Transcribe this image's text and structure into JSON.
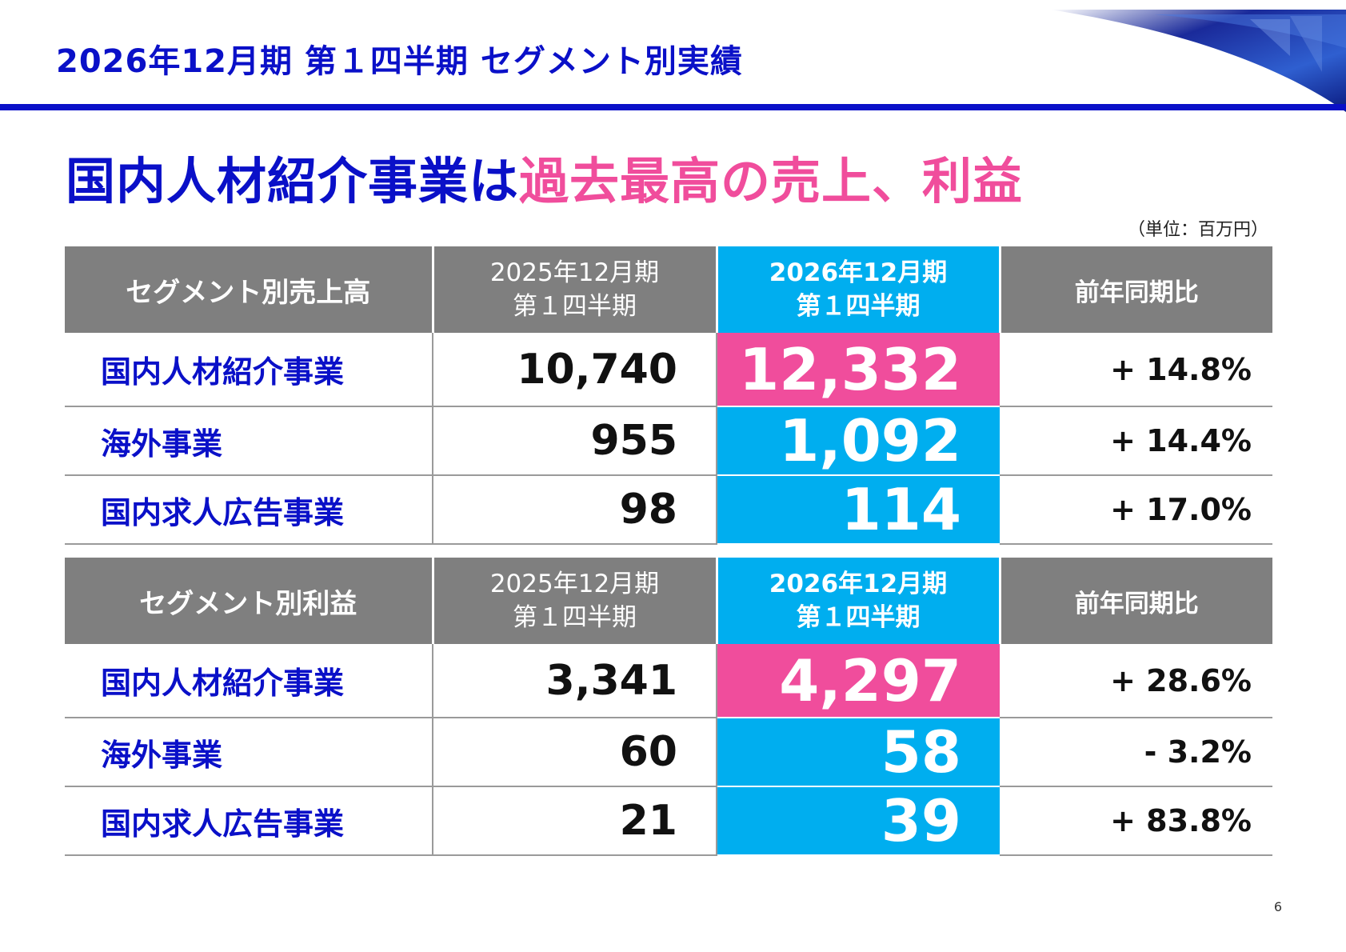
{
  "page": {
    "title": "2026年12月期 第１四半期 セグメント別実績",
    "headline_blue": "国内人材紹介事業は",
    "headline_pink": "過去最高の売上、利益",
    "unit_note": "（単位：百万円）",
    "page_number": "6"
  },
  "colors": {
    "title_blue": "#0a10c8",
    "accent_pink": "#f04d9c",
    "highlight_cyan": "#00aeef",
    "header_gray": "#7f7f7f"
  },
  "sales_table": {
    "header": {
      "label": "セグメント別売上高",
      "prev_period_line1": "2025年12月期",
      "prev_period_line2": "第１四半期",
      "curr_period_line1": "2026年12月期",
      "curr_period_line2": "第１四半期",
      "yoy": "前年同期比"
    },
    "rows": [
      {
        "segment": "国内人材紹介事業",
        "prev": "10,740",
        "curr": "12,332",
        "yoy": "+ 14.8%",
        "highlight": "pink"
      },
      {
        "segment": "海外事業",
        "prev": "955",
        "curr": "1,092",
        "yoy": "+ 14.4%",
        "highlight": "cyan"
      },
      {
        "segment": "国内求人広告事業",
        "prev": "98",
        "curr": "114",
        "yoy": "+ 17.0%",
        "highlight": "cyan"
      }
    ]
  },
  "profit_table": {
    "header": {
      "label": "セグメント別利益",
      "prev_period_line1": "2025年12月期",
      "prev_period_line2": "第１四半期",
      "curr_period_line1": "2026年12月期",
      "curr_period_line2": "第１四半期",
      "yoy": "前年同期比"
    },
    "rows": [
      {
        "segment": "国内人材紹介事業",
        "prev": "3,341",
        "curr": "4,297",
        "yoy": "+ 28.6%",
        "highlight": "pink"
      },
      {
        "segment": "海外事業",
        "prev": "60",
        "curr": "58",
        "yoy": "- 3.2%",
        "highlight": "cyan"
      },
      {
        "segment": "国内求人広告事業",
        "prev": "21",
        "curr": "39",
        "yoy": "+ 83.8%",
        "highlight": "cyan"
      }
    ]
  }
}
